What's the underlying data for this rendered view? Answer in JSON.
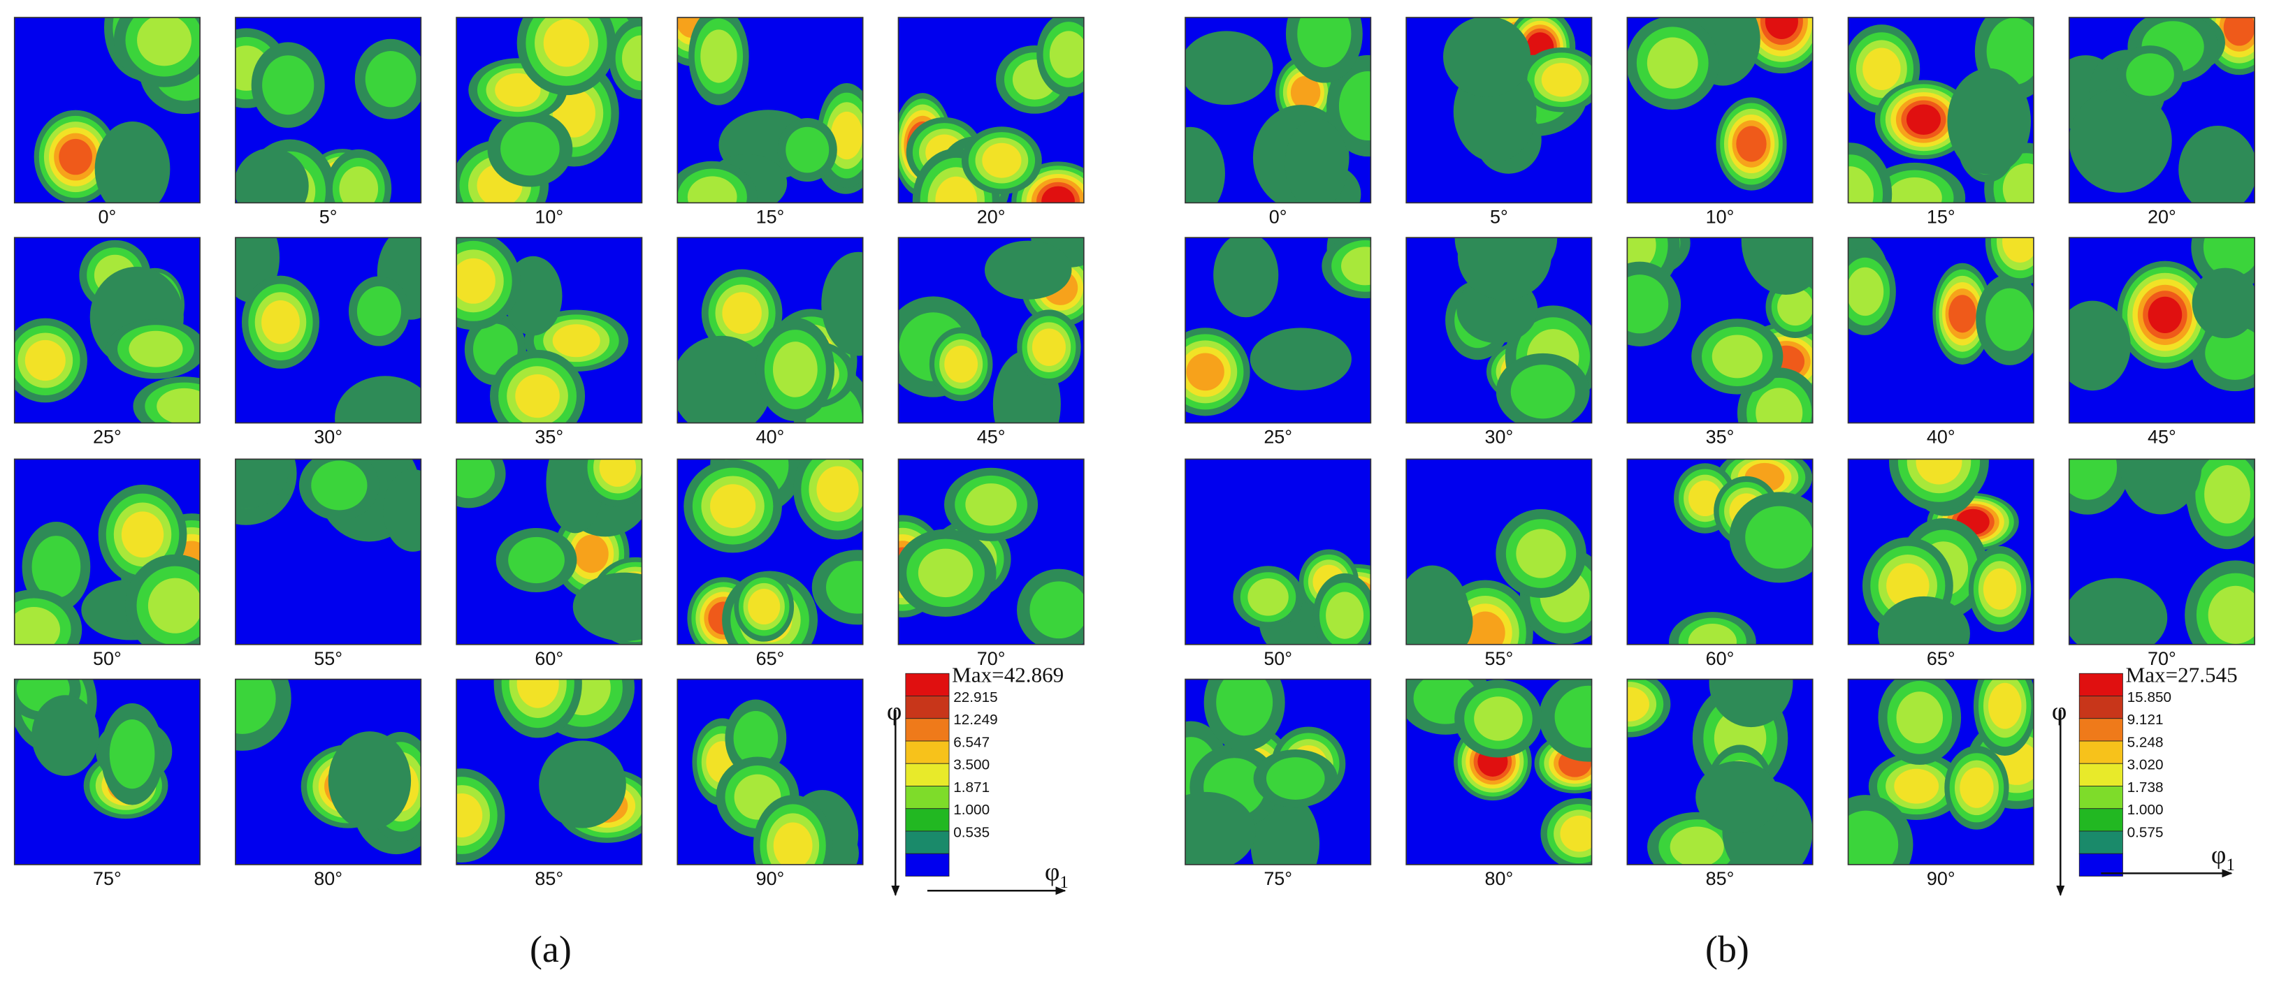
{
  "panels": [
    {
      "label": "(a)",
      "max_label": "Max=42.869",
      "levels": [
        "22.915",
        "12.249",
        "6.547",
        "3.500",
        "1.871",
        "1.000",
        "0.535"
      ],
      "tiles": [
        "0°",
        "5°",
        "10°",
        "15°",
        "20°",
        "25°",
        "30°",
        "35°",
        "40°",
        "45°",
        "50°",
        "55°",
        "60°",
        "65°",
        "70°",
        "75°",
        "80°",
        "85°",
        "90°"
      ]
    },
    {
      "label": "(b)",
      "max_label": "Max=27.545",
      "levels": [
        "15.850",
        "9.121",
        "5.248",
        "3.020",
        "1.738",
        "1.000",
        "0.575"
      ],
      "tiles": [
        "0°",
        "5°",
        "10°",
        "15°",
        "20°",
        "25°",
        "30°",
        "35°",
        "40°",
        "45°",
        "50°",
        "55°",
        "60°",
        "65°",
        "70°",
        "75°",
        "80°",
        "85°",
        "90°"
      ]
    }
  ],
  "axes": {
    "vertical": "φ",
    "horizontal": "φ",
    "horizontal_sub": "1"
  }
}
